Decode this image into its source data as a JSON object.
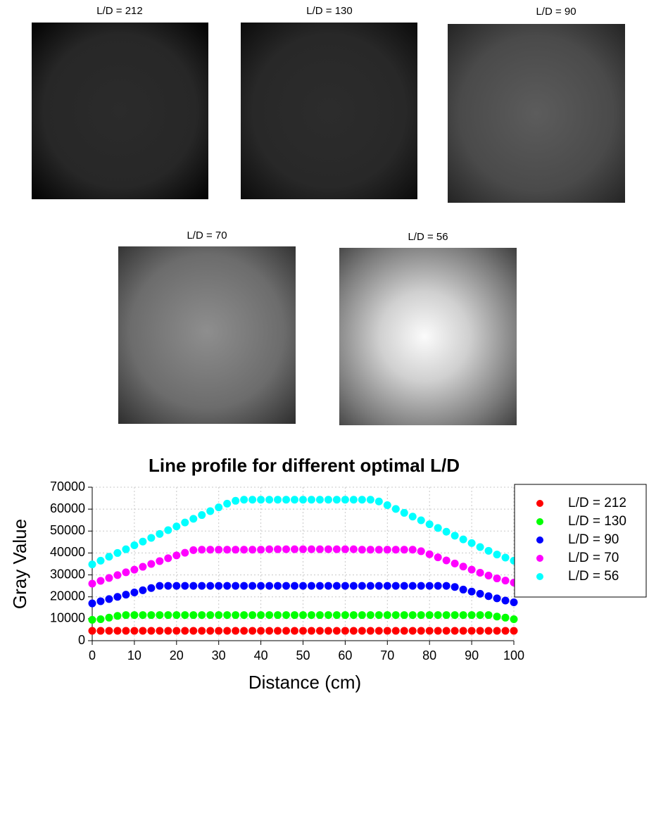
{
  "image_panels": [
    "L/D = 212",
    "L/D = 130",
    "L/D = 90",
    "L/D = 70",
    "L/D = 56"
  ],
  "chart_data": {
    "type": "scatter",
    "title": "Line profile for different optimal L/D",
    "xlabel": "Distance (cm)",
    "ylabel": "Gray Value",
    "xlim": [
      0,
      100
    ],
    "xticks": [
      0,
      10,
      20,
      30,
      40,
      50,
      60,
      70,
      80,
      90,
      100
    ],
    "ylim": [
      0,
      70000
    ],
    "yticks": [
      0,
      10000,
      20000,
      30000,
      40000,
      50000,
      60000,
      70000
    ],
    "grid": true,
    "legend": "right",
    "x": [
      0,
      2,
      4,
      6,
      8,
      10,
      12,
      14,
      16,
      18,
      20,
      22,
      24,
      26,
      28,
      30,
      32,
      34,
      36,
      38,
      40,
      42,
      44,
      46,
      48,
      50,
      52,
      54,
      56,
      58,
      60,
      62,
      64,
      66,
      68,
      70,
      72,
      74,
      76,
      78,
      80,
      82,
      84,
      86,
      88,
      90,
      92,
      94,
      96,
      98,
      100
    ],
    "series": [
      {
        "name": "L/D = 212",
        "color": "#ff0000",
        "values": [
          4500,
          4500,
          4500,
          4500,
          4500,
          4500,
          4500,
          4500,
          4500,
          4500,
          4500,
          4500,
          4500,
          4500,
          4500,
          4500,
          4500,
          4500,
          4500,
          4500,
          4500,
          4500,
          4500,
          4500,
          4500,
          4500,
          4500,
          4500,
          4500,
          4500,
          4500,
          4500,
          4500,
          4500,
          4500,
          4500,
          4500,
          4500,
          4500,
          4500,
          4500,
          4500,
          4500,
          4500,
          4500,
          4500,
          4500,
          4500,
          4500,
          4500,
          4500
        ]
      },
      {
        "name": "L/D = 130",
        "color": "#00ff00",
        "values": [
          9500,
          9800,
          10500,
          11300,
          11700,
          11700,
          11700,
          11700,
          11700,
          11700,
          11700,
          11700,
          11700,
          11700,
          11700,
          11700,
          11700,
          11700,
          11700,
          11700,
          11700,
          11700,
          11700,
          11700,
          11700,
          11700,
          11700,
          11700,
          11700,
          11700,
          11700,
          11700,
          11700,
          11700,
          11700,
          11700,
          11700,
          11700,
          11700,
          11700,
          11700,
          11700,
          11700,
          11700,
          11700,
          11700,
          11700,
          11700,
          11000,
          10500,
          9800
        ]
      },
      {
        "name": "L/D = 90",
        "color": "#0000ff",
        "values": [
          17000,
          18000,
          19000,
          20000,
          21000,
          22000,
          23000,
          24000,
          25000,
          25000,
          25000,
          25000,
          25000,
          25000,
          25000,
          25000,
          25000,
          25000,
          25000,
          25000,
          25000,
          25000,
          25000,
          25000,
          25000,
          25000,
          25000,
          25000,
          25000,
          25000,
          25000,
          25000,
          25000,
          25000,
          25000,
          25000,
          25000,
          25000,
          25000,
          25000,
          25000,
          25000,
          25000,
          24500,
          23300,
          22400,
          21400,
          20300,
          19300,
          18300,
          17500
        ]
      },
      {
        "name": "L/D = 70",
        "color": "#ff00ff",
        "values": [
          26000,
          27300,
          28600,
          29900,
          31200,
          32400,
          33700,
          35000,
          36300,
          37600,
          38900,
          40100,
          41300,
          41500,
          41500,
          41500,
          41500,
          41500,
          41500,
          41500,
          41500,
          41700,
          41700,
          41700,
          41700,
          41700,
          41700,
          41700,
          41700,
          41700,
          41700,
          41700,
          41500,
          41500,
          41500,
          41500,
          41500,
          41500,
          41500,
          40800,
          39400,
          38000,
          36600,
          35200,
          33800,
          32400,
          31000,
          29700,
          28400,
          27400,
          26500
        ]
      },
      {
        "name": "L/D = 56",
        "color": "#00ffff",
        "values": [
          34800,
          36500,
          38300,
          40000,
          41700,
          43500,
          45200,
          46900,
          48700,
          50400,
          52100,
          53900,
          55600,
          57300,
          59100,
          60800,
          62500,
          63800,
          64300,
          64300,
          64300,
          64300,
          64300,
          64300,
          64300,
          64300,
          64300,
          64300,
          64300,
          64300,
          64300,
          64300,
          64300,
          64300,
          63500,
          61800,
          60100,
          58300,
          56600,
          54900,
          53100,
          51400,
          49700,
          47900,
          46200,
          44500,
          42700,
          41000,
          39300,
          37900,
          36500
        ]
      }
    ]
  }
}
